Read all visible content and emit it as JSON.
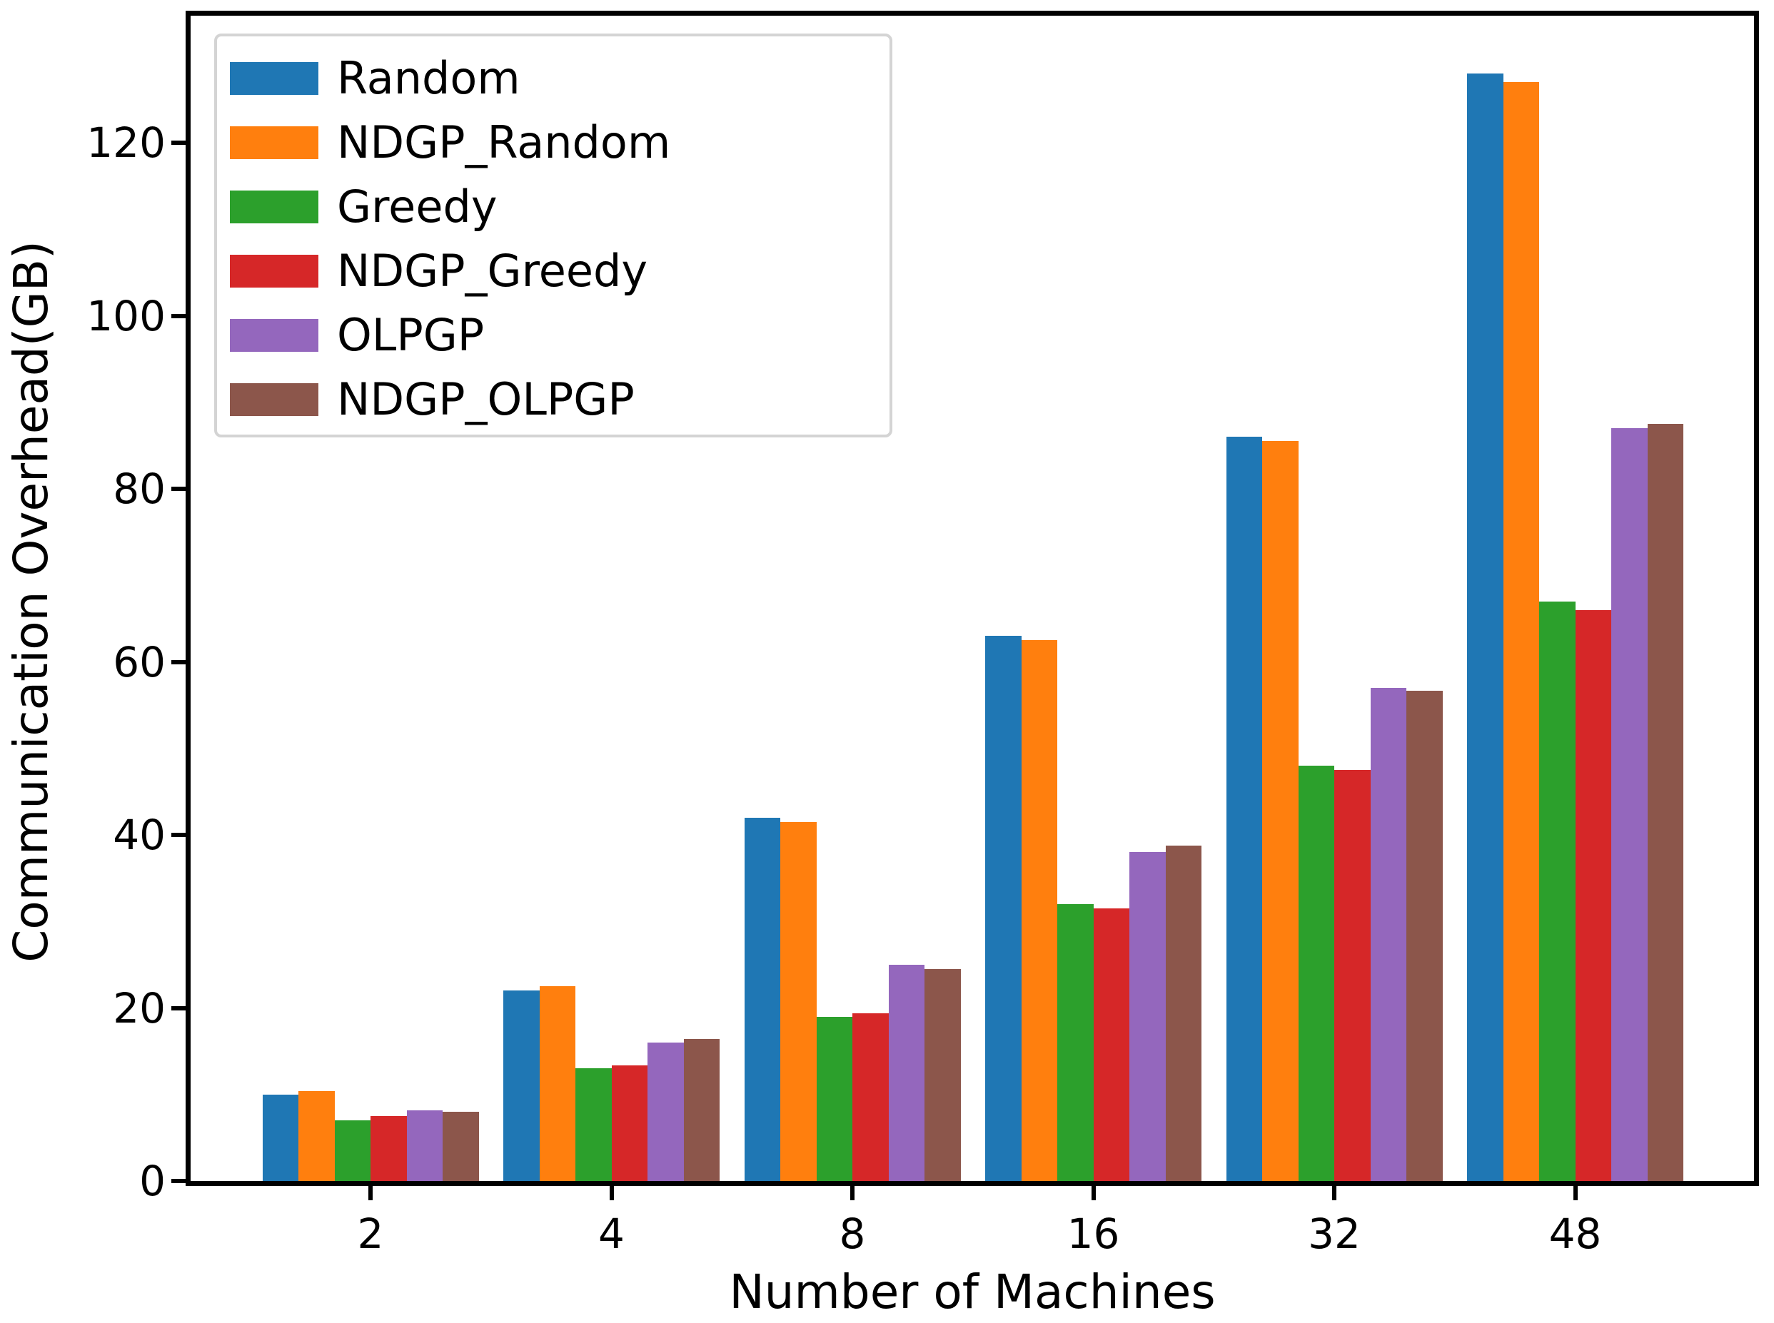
{
  "figure": {
    "background_color": "#ffffff",
    "axis_color": "#000000",
    "legend_border_color": "#d4d4d4"
  },
  "chart_data": {
    "type": "bar",
    "title": "",
    "xlabel": "Number of Machines",
    "ylabel": "Communication Overhead(GB)",
    "categories": [
      "2",
      "4",
      "8",
      "16",
      "32",
      "48"
    ],
    "series": [
      {
        "name": "Random",
        "color": "#1f77b4",
        "values": [
          10.0,
          22.0,
          42.0,
          63.0,
          86.0,
          128.0
        ]
      },
      {
        "name": "NDGP_Random",
        "color": "#ff7f0e",
        "values": [
          10.4,
          22.5,
          41.5,
          62.5,
          85.5,
          127.0
        ]
      },
      {
        "name": "Greedy",
        "color": "#2ca02c",
        "values": [
          7.0,
          13.0,
          19.0,
          32.0,
          48.0,
          67.0
        ]
      },
      {
        "name": "NDGP_Greedy",
        "color": "#d62728",
        "values": [
          7.5,
          13.4,
          19.4,
          31.5,
          47.5,
          66.0
        ]
      },
      {
        "name": "OLPGP",
        "color": "#9467bd",
        "values": [
          8.2,
          16.0,
          25.0,
          38.0,
          57.0,
          87.0
        ]
      },
      {
        "name": "NDGP_OLPGP",
        "color": "#8c564b",
        "values": [
          8.0,
          16.4,
          24.5,
          38.8,
          56.7,
          87.5
        ]
      }
    ],
    "yticks": [
      0,
      20,
      40,
      60,
      80,
      100,
      120
    ],
    "ylim": [
      0,
      134.7
    ],
    "grid": false,
    "legend_position": "upper left"
  }
}
